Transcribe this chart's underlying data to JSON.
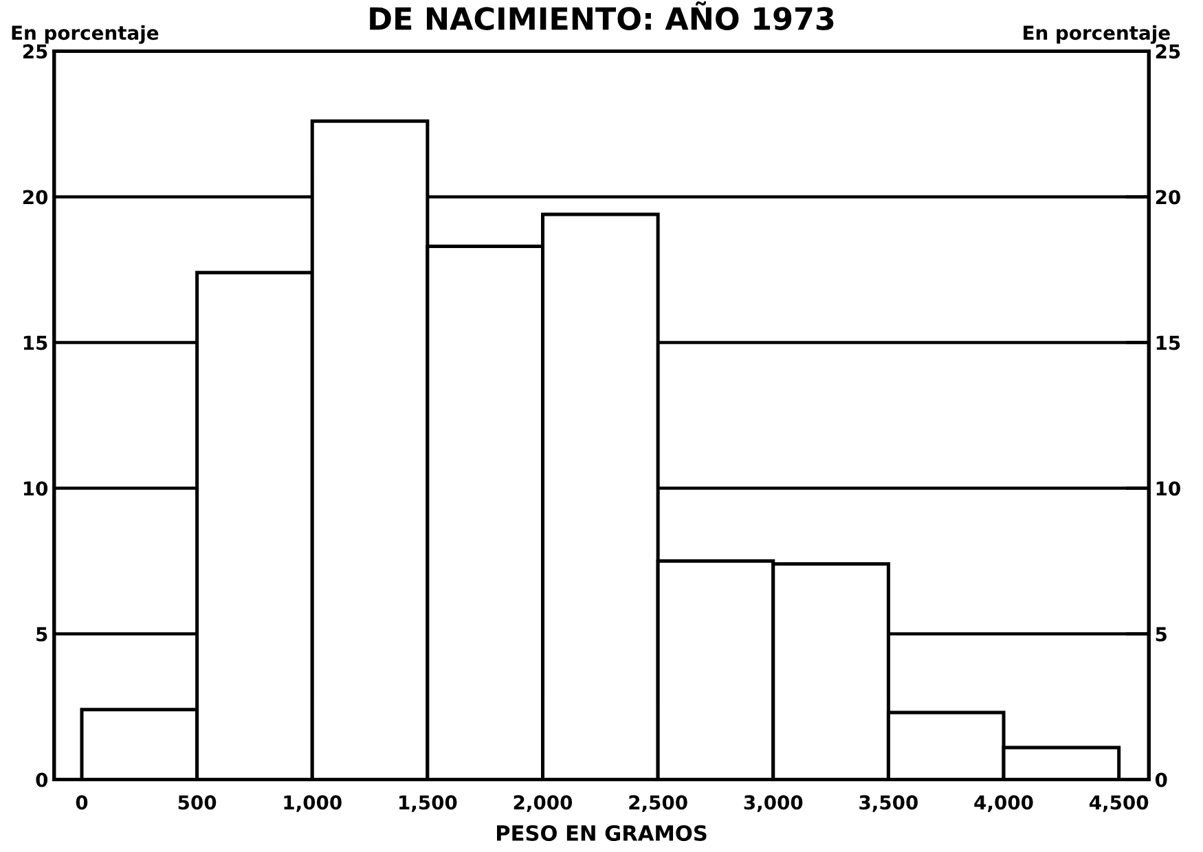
{
  "chart_data": {
    "type": "histogram",
    "title": "DE NACIMIENTO: AÑO 1973",
    "xlabel": "PESO EN GRAMOS",
    "ylabel": "En porcentaje",
    "y2label": "En porcentaje",
    "bins": [
      0,
      500,
      1000,
      1500,
      2000,
      2500,
      3000,
      3500,
      4000,
      4500
    ],
    "values": [
      2.4,
      17.4,
      22.6,
      18.3,
      19.4,
      7.5,
      7.4,
      2.3,
      1.1
    ],
    "color": "#ffffff",
    "xlim": [
      -120,
      4630
    ],
    "xticks": [
      0,
      500,
      {
        "value": 1000,
        "label": "1,000"
      },
      {
        "value": 1500,
        "label": "1,500"
      },
      {
        "value": 2000,
        "label": "2,000"
      },
      {
        "value": 2500,
        "label": "2,500"
      },
      {
        "value": 3000,
        "label": "3,000"
      },
      {
        "value": 3500,
        "label": "3,500"
      },
      {
        "value": 4000,
        "label": "4,000"
      },
      {
        "value": 4500,
        "label": "4,500"
      }
    ],
    "ylim": [
      0,
      25
    ],
    "yticks": [
      0,
      5,
      10,
      15,
      20,
      25
    ],
    "y2lim": [
      0,
      25
    ],
    "y2ticks": [
      0,
      5,
      10,
      15,
      20,
      25
    ],
    "grid": "y"
  }
}
